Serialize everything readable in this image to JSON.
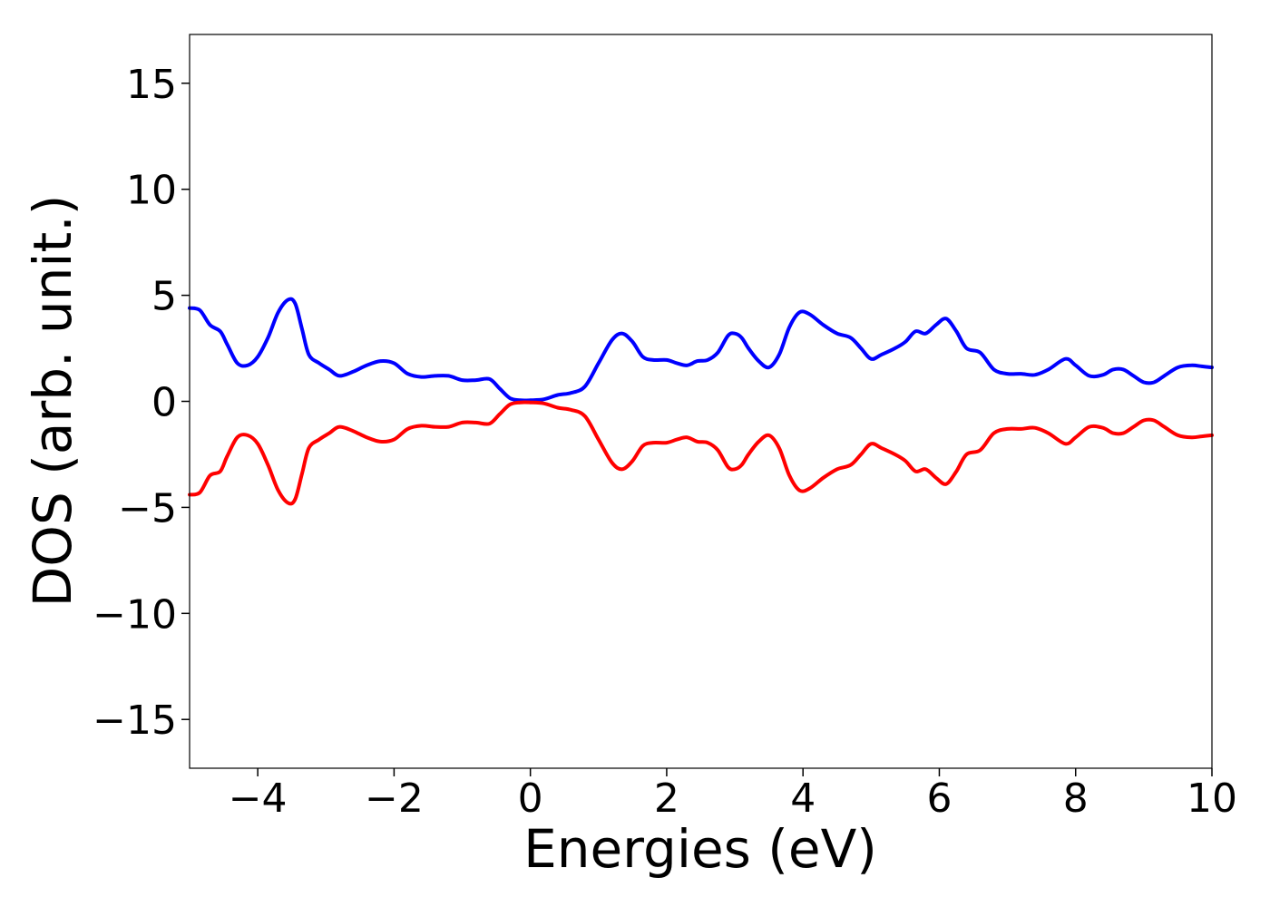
{
  "chart_data": {
    "type": "line",
    "title": "",
    "xlabel": "Energies (eV)",
    "ylabel": "DOS (arb. unit.)",
    "xlim": [
      -5,
      10
    ],
    "ylim": [
      -17.3,
      17.3
    ],
    "xticks": [
      -4,
      -2,
      0,
      2,
      4,
      6,
      8,
      10
    ],
    "xtick_labels": [
      "−4",
      "−2",
      "0",
      "2",
      "4",
      "6",
      "8",
      "10"
    ],
    "yticks": [
      15,
      10,
      5,
      0,
      -5,
      -10,
      -15
    ],
    "ytick_labels": [
      "15",
      "10",
      "5",
      "0",
      "−5",
      "−10",
      "−15"
    ],
    "grid": false,
    "legend": false,
    "series": [
      {
        "color": "#0000ff",
        "x": [
          -5.0,
          -4.85,
          -4.7,
          -4.55,
          -4.45,
          -4.3,
          -4.15,
          -4.0,
          -3.85,
          -3.7,
          -3.55,
          -3.45,
          -3.35,
          -3.25,
          -3.1,
          -2.95,
          -2.8,
          -2.6,
          -2.4,
          -2.2,
          -2.0,
          -1.8,
          -1.6,
          -1.4,
          -1.2,
          -1.0,
          -0.8,
          -0.6,
          -0.45,
          -0.3,
          -0.15,
          0.0,
          0.2,
          0.4,
          0.6,
          0.8,
          1.0,
          1.2,
          1.35,
          1.5,
          1.65,
          1.8,
          2.0,
          2.15,
          2.3,
          2.45,
          2.6,
          2.75,
          2.9,
          3.0,
          3.1,
          3.2,
          3.35,
          3.5,
          3.65,
          3.8,
          3.95,
          4.1,
          4.3,
          4.5,
          4.7,
          4.85,
          5.0,
          5.15,
          5.35,
          5.5,
          5.65,
          5.8,
          5.95,
          6.1,
          6.25,
          6.4,
          6.6,
          6.8,
          7.0,
          7.2,
          7.4,
          7.6,
          7.85,
          8.0,
          8.2,
          8.4,
          8.55,
          8.7,
          8.85,
          9.0,
          9.15,
          9.3,
          9.5,
          9.7,
          9.85,
          10.0
        ],
        "y": [
          4.4,
          4.3,
          3.6,
          3.3,
          2.7,
          1.8,
          1.7,
          2.1,
          3.0,
          4.2,
          4.8,
          4.6,
          3.4,
          2.2,
          1.8,
          1.5,
          1.2,
          1.4,
          1.7,
          1.9,
          1.8,
          1.3,
          1.15,
          1.2,
          1.2,
          1.0,
          1.0,
          1.05,
          0.6,
          0.15,
          0.05,
          0.05,
          0.1,
          0.3,
          0.4,
          0.7,
          1.8,
          2.9,
          3.2,
          2.8,
          2.1,
          1.95,
          1.95,
          1.8,
          1.7,
          1.9,
          1.95,
          2.3,
          3.1,
          3.2,
          3.0,
          2.5,
          1.9,
          1.6,
          2.2,
          3.5,
          4.2,
          4.1,
          3.6,
          3.2,
          3.0,
          2.5,
          2.0,
          2.2,
          2.5,
          2.8,
          3.3,
          3.2,
          3.6,
          3.9,
          3.3,
          2.5,
          2.3,
          1.5,
          1.3,
          1.3,
          1.25,
          1.5,
          2.0,
          1.7,
          1.2,
          1.25,
          1.5,
          1.5,
          1.2,
          0.9,
          0.9,
          1.2,
          1.6,
          1.7,
          1.65,
          1.6
        ]
      },
      {
        "color": "#ff0000",
        "x": [
          -5.0,
          -4.85,
          -4.7,
          -4.55,
          -4.45,
          -4.3,
          -4.15,
          -4.0,
          -3.85,
          -3.7,
          -3.55,
          -3.45,
          -3.35,
          -3.25,
          -3.1,
          -2.95,
          -2.8,
          -2.6,
          -2.4,
          -2.2,
          -2.0,
          -1.8,
          -1.6,
          -1.4,
          -1.2,
          -1.0,
          -0.8,
          -0.6,
          -0.45,
          -0.3,
          -0.15,
          0.0,
          0.2,
          0.4,
          0.6,
          0.8,
          1.0,
          1.2,
          1.35,
          1.5,
          1.65,
          1.8,
          2.0,
          2.15,
          2.3,
          2.45,
          2.6,
          2.75,
          2.9,
          3.0,
          3.1,
          3.2,
          3.35,
          3.5,
          3.65,
          3.8,
          3.95,
          4.1,
          4.3,
          4.5,
          4.7,
          4.85,
          5.0,
          5.15,
          5.35,
          5.5,
          5.65,
          5.8,
          5.95,
          6.1,
          6.25,
          6.4,
          6.6,
          6.8,
          7.0,
          7.2,
          7.4,
          7.6,
          7.85,
          8.0,
          8.2,
          8.4,
          8.55,
          8.7,
          8.85,
          9.0,
          9.15,
          9.3,
          9.5,
          9.7,
          9.85,
          10.0
        ],
        "y": [
          -4.4,
          -4.3,
          -3.5,
          -3.3,
          -2.6,
          -1.7,
          -1.6,
          -2.0,
          -3.0,
          -4.2,
          -4.8,
          -4.6,
          -3.4,
          -2.2,
          -1.8,
          -1.5,
          -1.2,
          -1.4,
          -1.7,
          -1.9,
          -1.8,
          -1.3,
          -1.15,
          -1.2,
          -1.2,
          -1.0,
          -1.0,
          -1.05,
          -0.6,
          -0.15,
          -0.05,
          -0.05,
          -0.1,
          -0.3,
          -0.4,
          -0.7,
          -1.8,
          -2.9,
          -3.2,
          -2.8,
          -2.1,
          -1.95,
          -1.95,
          -1.8,
          -1.7,
          -1.9,
          -1.95,
          -2.3,
          -3.1,
          -3.2,
          -3.0,
          -2.5,
          -1.9,
          -1.6,
          -2.2,
          -3.5,
          -4.2,
          -4.1,
          -3.6,
          -3.2,
          -3.0,
          -2.5,
          -2.0,
          -2.2,
          -2.5,
          -2.8,
          -3.3,
          -3.2,
          -3.6,
          -3.9,
          -3.3,
          -2.5,
          -2.3,
          -1.5,
          -1.3,
          -1.3,
          -1.25,
          -1.5,
          -2.0,
          -1.7,
          -1.2,
          -1.25,
          -1.5,
          -1.5,
          -1.2,
          -0.9,
          -0.9,
          -1.2,
          -1.6,
          -1.7,
          -1.65,
          -1.6
        ]
      }
    ]
  }
}
